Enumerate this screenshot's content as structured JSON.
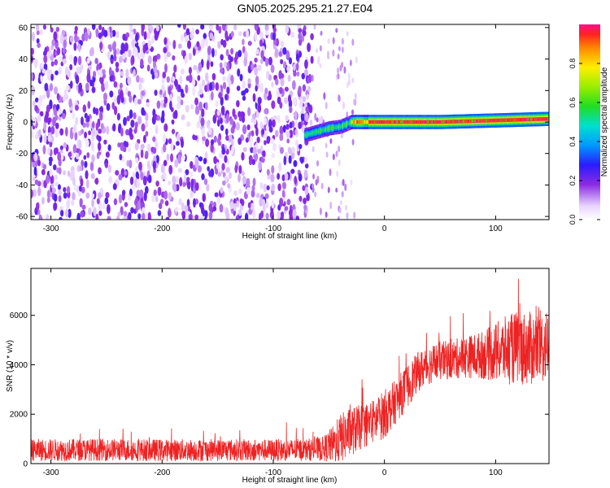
{
  "title": "GN05.2025.295.21.27.E04",
  "chart_data": [
    {
      "type": "heatmap",
      "title": "GN05.2025.295.21.27.E04",
      "xlabel": "Height of straight line (km)",
      "ylabel": "Frequency (Hz)",
      "xlim": [
        -318,
        148
      ],
      "ylim": [
        -62,
        62
      ],
      "xticks": [
        -300,
        -200,
        -100,
        0,
        100
      ],
      "yticks": [
        -60,
        -40,
        -20,
        0,
        20,
        40,
        60
      ],
      "grid": false,
      "colorbar": {
        "label": "Normalized spectral amplitude",
        "range": [
          0,
          1
        ],
        "ticks": [
          0.0,
          0.2,
          0.4,
          0.6,
          0.8
        ]
      },
      "description_values": {
        "noise_region_x": [
          -318,
          -65
        ],
        "noise_amplitude": [
          0.0,
          0.25
        ],
        "signal_band_center_hz": [
          [
            -70,
            -8
          ],
          [
            -60,
            -6
          ],
          [
            -50,
            -4
          ],
          [
            -40,
            -3
          ],
          [
            -30,
            0
          ],
          [
            0,
            0
          ],
          [
            50,
            0
          ],
          [
            100,
            1
          ],
          [
            148,
            2
          ]
        ],
        "signal_band_amplitude_x0_to_148": 1.0
      }
    },
    {
      "type": "line",
      "xlabel": "Height of straight line (km)",
      "ylabel": "SNR (10 * v/v)",
      "xlim": [
        -318,
        148
      ],
      "ylim": [
        0,
        7900
      ],
      "xticks": [
        -300,
        -200,
        -100,
        0,
        100
      ],
      "yticks": [
        0,
        2000,
        4000,
        6000
      ],
      "grid": false,
      "series": [
        {
          "color": "#ee2222",
          "x": [
            -318,
            -300,
            -250,
            -200,
            -150,
            -100,
            -70,
            -55,
            -45,
            -40,
            -30,
            -20,
            -10,
            0,
            10,
            20,
            30,
            40,
            50,
            60,
            70,
            80,
            90,
            100,
            110,
            120,
            130,
            140,
            148
          ],
          "mean": [
            550,
            550,
            560,
            540,
            550,
            540,
            560,
            600,
            800,
            1000,
            1300,
            1500,
            1700,
            2000,
            2500,
            3100,
            3700,
            4000,
            4150,
            4200,
            4300,
            4350,
            4400,
            4500,
            4600,
            4700,
            4650,
            4700,
            4800
          ],
          "spread": [
            450,
            450,
            450,
            450,
            450,
            450,
            450,
            500,
            800,
            1000,
            1000,
            900,
            900,
            1000,
            900,
            900,
            800,
            800,
            800,
            800,
            850,
            900,
            1000,
            1200,
            1400,
            1500,
            1500,
            1500,
            1500
          ]
        }
      ]
    }
  ]
}
